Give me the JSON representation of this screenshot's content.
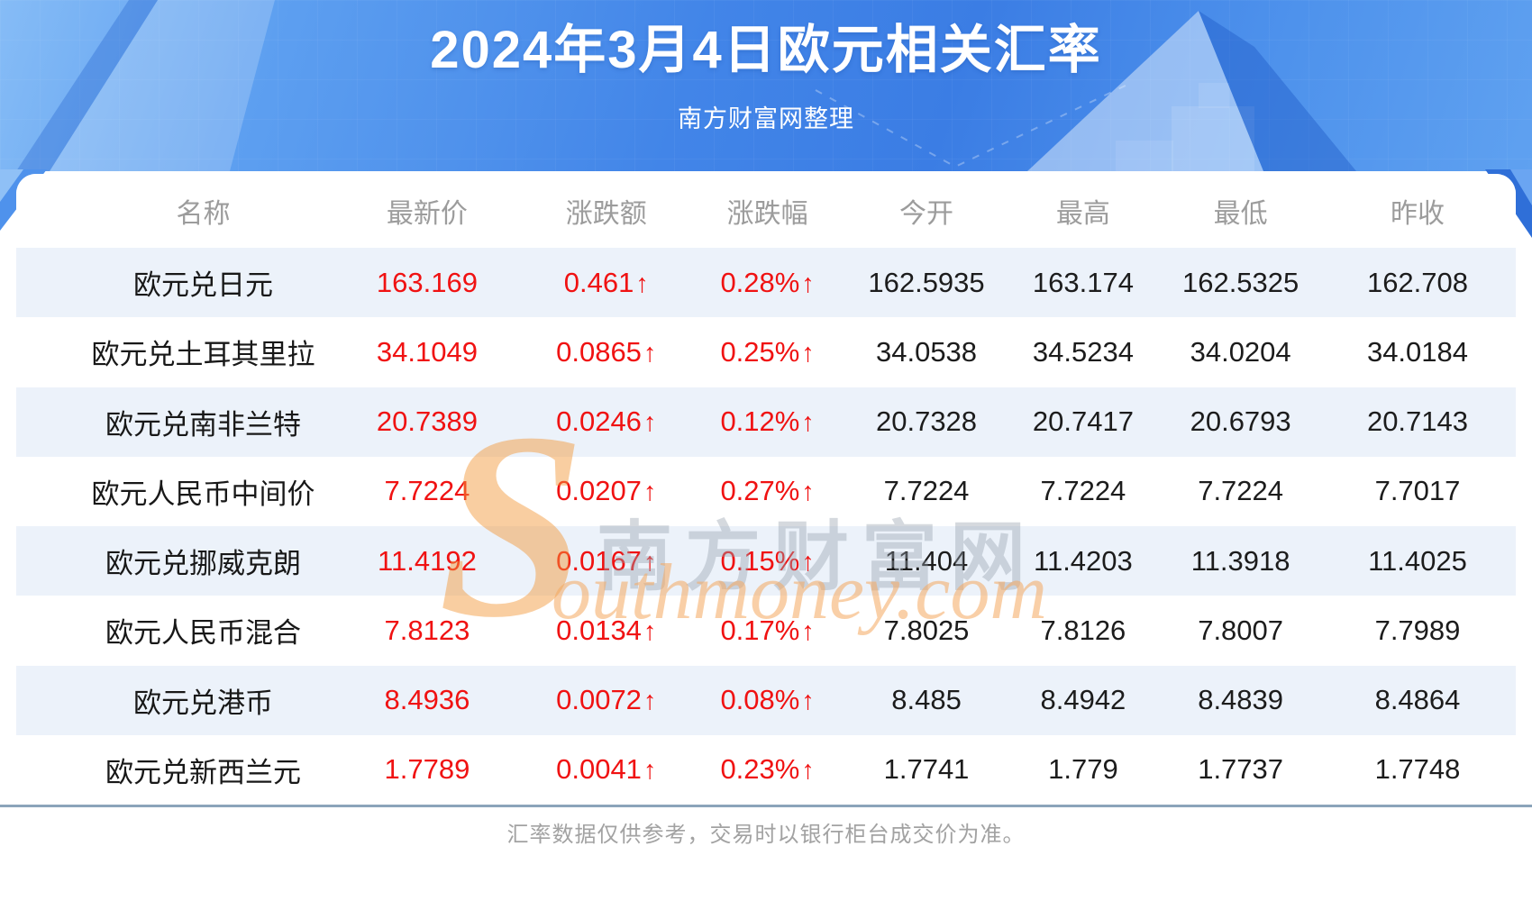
{
  "header": {
    "title": "2024年3月4日欧元相关汇率",
    "subtitle": "南方财富网整理"
  },
  "footer": {
    "note": "汇率数据仅供参考，交易时以银行柜台成交价为准。"
  },
  "watermark": {
    "swoosh": "S",
    "cn": "南方财富网",
    "en": "outhmoney.com"
  },
  "colors": {
    "accent_red": "#f01212",
    "value_black": "#1c1c1c",
    "muted_gray": "#9c9c9c",
    "row_alt_blue": "#ecf2fa",
    "divider_blue_gray": "#8ba4ba",
    "hero_blue_light": "#86bcf6",
    "hero_blue_deep": "#3b7de4"
  },
  "chart_data": {
    "type": "table",
    "title": "2024年3月4日欧元相关汇率",
    "subtitle": "南方财富网整理",
    "columns": [
      "名称",
      "最新价",
      "涨跌额",
      "涨跌幅",
      "今开",
      "最高",
      "最低",
      "昨收"
    ],
    "rows": [
      {
        "name": "欧元兑日元",
        "latest": "163.169",
        "change": "0.461",
        "change_dir": "↑",
        "pct": "0.28%",
        "open": "162.5935",
        "high": "163.174",
        "low": "162.5325",
        "prev": "162.708"
      },
      {
        "name": "欧元兑土耳其里拉",
        "latest": "34.1049",
        "change": "0.0865",
        "change_dir": "↑",
        "pct": "0.25%",
        "open": "34.0538",
        "high": "34.5234",
        "low": "34.0204",
        "prev": "34.0184"
      },
      {
        "name": "欧元兑南非兰特",
        "latest": "20.7389",
        "change": "0.0246",
        "change_dir": "↑",
        "pct": "0.12%",
        "open": "20.7328",
        "high": "20.7417",
        "low": "20.6793",
        "prev": "20.7143"
      },
      {
        "name": "欧元人民币中间价",
        "latest": "7.7224",
        "change": "0.0207",
        "change_dir": "↑",
        "pct": "0.27%",
        "open": "7.7224",
        "high": "7.7224",
        "low": "7.7224",
        "prev": "7.7017"
      },
      {
        "name": "欧元兑挪威克朗",
        "latest": "11.4192",
        "change": "0.0167",
        "change_dir": "↑",
        "pct": "0.15%",
        "open": "11.404",
        "high": "11.4203",
        "low": "11.3918",
        "prev": "11.4025"
      },
      {
        "name": "欧元人民币混合",
        "latest": "7.8123",
        "change": "0.0134",
        "change_dir": "↑",
        "pct": "0.17%",
        "open": "7.8025",
        "high": "7.8126",
        "low": "7.8007",
        "prev": "7.7989"
      },
      {
        "name": "欧元兑港币",
        "latest": "8.4936",
        "change": "0.0072",
        "change_dir": "↑",
        "pct": "0.08%",
        "open": "8.485",
        "high": "8.4942",
        "low": "8.4839",
        "prev": "8.4864"
      },
      {
        "name": "欧元兑新西兰元",
        "latest": "1.7789",
        "change": "0.0041",
        "change_dir": "↑",
        "pct": "0.23%",
        "open": "1.7741",
        "high": "1.779",
        "low": "1.7737",
        "prev": "1.7748"
      }
    ]
  }
}
